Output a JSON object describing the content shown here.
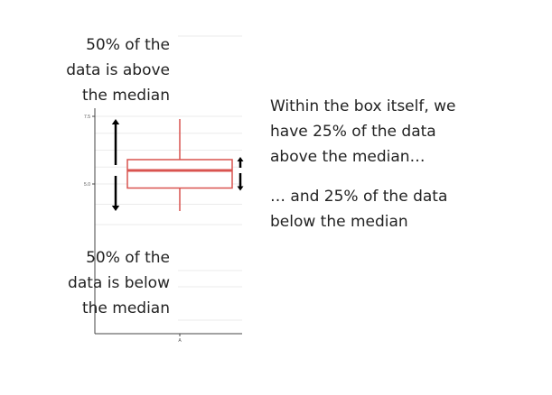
{
  "annotations": {
    "above_median": "50% of the\ndata is above\nthe median",
    "below_median": "50% of the\ndata is below\nthe median",
    "box_above": "Within the box itself, we\nhave 25% of the data\nabove the median…",
    "box_below": "… and 25% of the data\nbelow the median"
  },
  "chart_data": {
    "type": "boxplot",
    "categories": [
      "A"
    ],
    "y_ticks": [
      {
        "label": "5.0",
        "value": 5.0
      },
      {
        "label": "7.5",
        "value": 7.5
      }
    ],
    "ylim": [
      3.2,
      8.0
    ],
    "boxes": [
      {
        "category": "A",
        "whisker_low": 4.0,
        "q1": 4.85,
        "median": 5.5,
        "q3": 5.9,
        "whisker_high": 7.4
      }
    ],
    "grid": true,
    "colors": {
      "box": "#d9534f",
      "arrow": "#000000",
      "grid": "#ebebeb",
      "axis": "#444444"
    }
  }
}
